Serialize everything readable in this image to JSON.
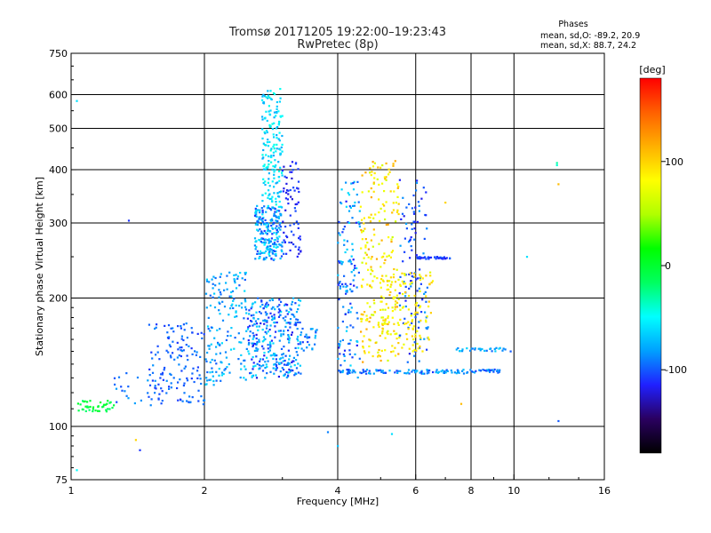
{
  "header": {
    "title_line1": "Tromsø 20171205 19:22:00–19:23:43",
    "title_line2": "RwPretec (8p)"
  },
  "stats": {
    "title": "Phases",
    "o_line": "mean, sd,O: -89.2, 20.9",
    "x_line": "mean, sd,X:  88.7, 24.2"
  },
  "colorbar": {
    "label": "[deg]",
    "ticks": [
      {
        "value": 100,
        "label": "100"
      },
      {
        "value": 0,
        "label": "0"
      },
      {
        "value": -100,
        "label": "-100"
      }
    ],
    "range": [
      -180,
      180
    ],
    "colors": [
      "#000000",
      "#2a0060",
      "#2020ff",
      "#00a0ff",
      "#00ffff",
      "#00ff60",
      "#00ff00",
      "#b0ff00",
      "#ffff00",
      "#ffb000",
      "#ff6000",
      "#ff0000"
    ]
  },
  "chart_data": {
    "type": "scatter",
    "title": "Tromsø 20171205 19:22:00–19:23:43",
    "subtitle": "RwPretec (8p)",
    "xlabel": "Frequency [MHz]",
    "ylabel": "Stationary phase Virtual Height [km]",
    "xscale": "log",
    "yscale": "log",
    "xlim": [
      1,
      16
    ],
    "ylim": [
      75,
      750
    ],
    "grid": true,
    "x_ticks": [
      {
        "value": 1,
        "label": "1",
        "grid": false
      },
      {
        "value": 2,
        "label": "2",
        "grid": true
      },
      {
        "value": 4,
        "label": "4",
        "grid": true
      },
      {
        "value": 6,
        "label": "6",
        "grid": true
      },
      {
        "value": 8,
        "label": "8",
        "grid": true
      },
      {
        "value": 10,
        "label": "10",
        "grid": true
      },
      {
        "value": 16,
        "label": "16",
        "grid": false
      }
    ],
    "y_ticks": [
      {
        "value": 75,
        "label": "75",
        "grid": false
      },
      {
        "value": 100,
        "label": "100",
        "grid": true
      },
      {
        "value": 200,
        "label": "200",
        "grid": true
      },
      {
        "value": 300,
        "label": "300",
        "grid": true
      },
      {
        "value": 400,
        "label": "400",
        "grid": true
      },
      {
        "value": 500,
        "label": "500",
        "grid": true
      },
      {
        "value": 600,
        "label": "600",
        "grid": true
      },
      {
        "value": 750,
        "label": "750",
        "grid": false
      }
    ],
    "clusters": [
      {
        "f": [
          1.0,
          1.25
        ],
        "h": [
          108,
          115
        ],
        "phase": [
          -20,
          5
        ],
        "n": 40
      },
      {
        "f": [
          1.25,
          1.5
        ],
        "h": [
          113,
          135
        ],
        "phase": [
          -105,
          -80
        ],
        "n": 18
      },
      {
        "f": [
          1.5,
          2.0
        ],
        "h": [
          112,
          175
        ],
        "phase": [
          -110,
          -85
        ],
        "n": 140
      },
      {
        "f": [
          2.0,
          2.5
        ],
        "h": [
          125,
          230
        ],
        "phase": [
          -100,
          -60
        ],
        "n": 160
      },
      {
        "f": [
          2.5,
          3.3
        ],
        "h": [
          130,
          200
        ],
        "phase": [
          -120,
          -55
        ],
        "n": 320
      },
      {
        "f": [
          2.6,
          3.0
        ],
        "h": [
          245,
          330
        ],
        "phase": [
          -110,
          -50
        ],
        "n": 220
      },
      {
        "f": [
          2.7,
          3.0
        ],
        "h": [
          330,
          620
        ],
        "phase": [
          -80,
          -40
        ],
        "n": 170
      },
      {
        "f": [
          3.0,
          3.3
        ],
        "h": [
          250,
          420
        ],
        "phase": [
          -125,
          -100
        ],
        "n": 70
      },
      {
        "f": [
          3.3,
          3.6
        ],
        "h": [
          150,
          170
        ],
        "phase": [
          -110,
          -70
        ],
        "n": 25
      },
      {
        "f": [
          4.0,
          4.5
        ],
        "h": [
          130,
          380
        ],
        "phase": [
          -120,
          -60
        ],
        "n": 130
      },
      {
        "f": [
          4.5,
          5.5
        ],
        "h": [
          140,
          420
        ],
        "phase": [
          60,
          120
        ],
        "n": 220
      },
      {
        "f": [
          5.5,
          6.4
        ],
        "h": [
          140,
          380
        ],
        "phase": [
          -120,
          -80
        ],
        "n": 110
      },
      {
        "f": [
          5.0,
          6.6
        ],
        "h": [
          150,
          230
        ],
        "phase": [
          70,
          105
        ],
        "n": 130
      },
      {
        "f": [
          6.0,
          7.2
        ],
        "h": [
          247,
          250
        ],
        "phase": [
          -120,
          -95
        ],
        "n": 40
      },
      {
        "f": [
          4.0,
          9.3
        ],
        "h": [
          133,
          136
        ],
        "phase": [
          -110,
          -70
        ],
        "n": 130
      },
      {
        "f": [
          7.4,
          10.0
        ],
        "h": [
          150,
          153
        ],
        "phase": [
          -100,
          -60
        ],
        "n": 30
      }
    ],
    "points": [
      {
        "f": 1.03,
        "h": 580,
        "phase": -60
      },
      {
        "f": 1.03,
        "h": 79,
        "phase": -50
      },
      {
        "f": 1.35,
        "h": 304,
        "phase": -110
      },
      {
        "f": 1.4,
        "h": 93,
        "phase": 100
      },
      {
        "f": 1.43,
        "h": 88,
        "phase": -110
      },
      {
        "f": 3.8,
        "h": 97,
        "phase": -90
      },
      {
        "f": 4.0,
        "h": 90,
        "phase": -70
      },
      {
        "f": 5.3,
        "h": 96,
        "phase": -60
      },
      {
        "f": 7.6,
        "h": 113,
        "phase": 110
      },
      {
        "f": 7.0,
        "h": 335,
        "phase": 100
      },
      {
        "f": 10.7,
        "h": 250,
        "phase": -60
      },
      {
        "f": 12.5,
        "h": 410,
        "phase": -40
      },
      {
        "f": 12.5,
        "h": 415,
        "phase": -30
      },
      {
        "f": 12.6,
        "h": 370,
        "phase": 110
      },
      {
        "f": 12.6,
        "h": 103,
        "phase": -100
      }
    ]
  }
}
